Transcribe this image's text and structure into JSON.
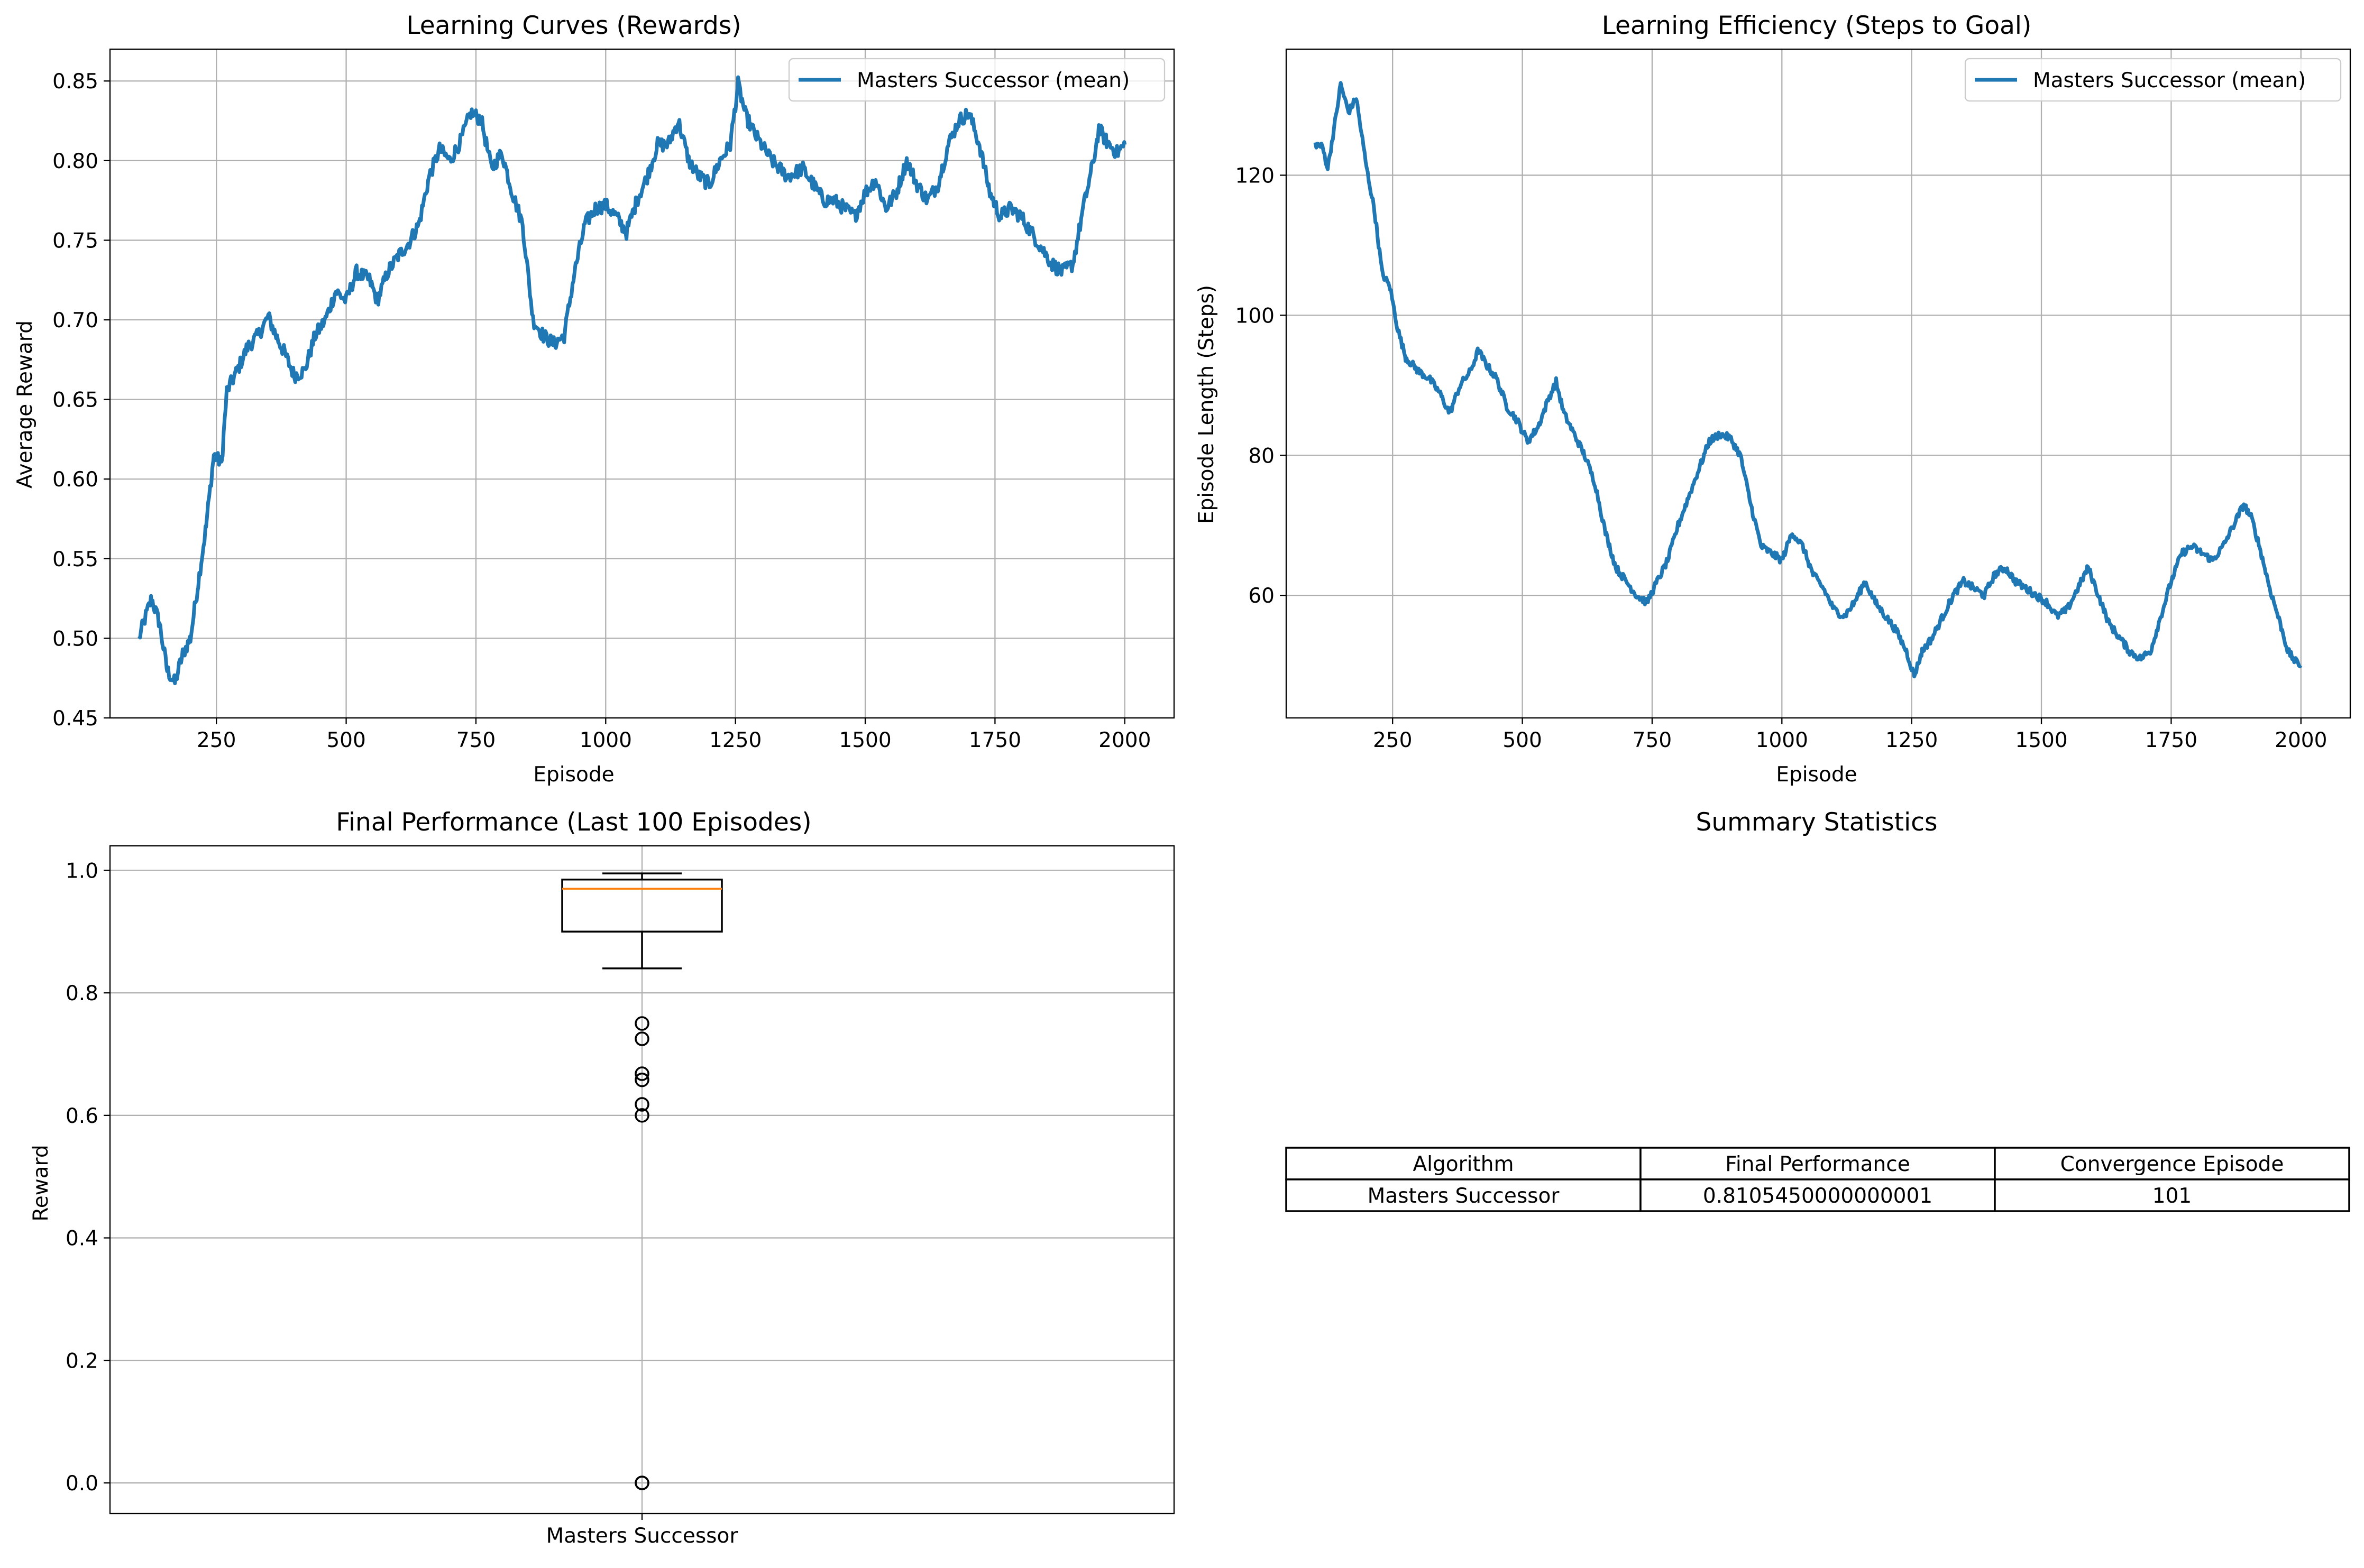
{
  "colors": {
    "series": "#1f77b4",
    "median": "#ff7f0e",
    "grid": "#b0b0b0"
  },
  "chart_data": [
    {
      "type": "line",
      "title": "Learning Curves (Rewards)",
      "xlabel": "Episode",
      "ylabel": "Average Reward",
      "xlim": [
        45,
        2095
      ],
      "ylim": [
        0.45,
        0.87
      ],
      "xticks": [
        250,
        500,
        750,
        1000,
        1250,
        1500,
        1750,
        2000
      ],
      "yticks": [
        0.45,
        0.5,
        0.55,
        0.6,
        0.65,
        0.7,
        0.75,
        0.8,
        0.85
      ],
      "grid": true,
      "legend": "top-right",
      "series": [
        {
          "name": "Masters Successor (mean)",
          "anchors": [
            [
              101,
              0.5
            ],
            [
              110,
              0.51
            ],
            [
              125,
              0.525
            ],
            [
              140,
              0.51
            ],
            [
              155,
              0.48
            ],
            [
              170,
              0.472
            ],
            [
              185,
              0.49
            ],
            [
              200,
              0.5
            ],
            [
              215,
              0.535
            ],
            [
              230,
              0.57
            ],
            [
              245,
              0.615
            ],
            [
              260,
              0.61
            ],
            [
              270,
              0.655
            ],
            [
              290,
              0.668
            ],
            [
              310,
              0.683
            ],
            [
              330,
              0.69
            ],
            [
              350,
              0.702
            ],
            [
              365,
              0.69
            ],
            [
              380,
              0.68
            ],
            [
              400,
              0.665
            ],
            [
              420,
              0.668
            ],
            [
              440,
              0.69
            ],
            [
              460,
              0.7
            ],
            [
              480,
              0.718
            ],
            [
              500,
              0.712
            ],
            [
              520,
              0.73
            ],
            [
              545,
              0.725
            ],
            [
              560,
              0.712
            ],
            [
              580,
              0.73
            ],
            [
              600,
              0.74
            ],
            [
              620,
              0.748
            ],
            [
              640,
              0.76
            ],
            [
              660,
              0.79
            ],
            [
              680,
              0.807
            ],
            [
              700,
              0.8
            ],
            [
              720,
              0.812
            ],
            [
              740,
              0.83
            ],
            [
              760,
              0.826
            ],
            [
              780,
              0.795
            ],
            [
              800,
              0.805
            ],
            [
              820,
              0.78
            ],
            [
              840,
              0.76
            ],
            [
              860,
              0.7
            ],
            [
              880,
              0.69
            ],
            [
              900,
              0.685
            ],
            [
              920,
              0.69
            ],
            [
              940,
              0.73
            ],
            [
              960,
              0.76
            ],
            [
              980,
              0.77
            ],
            [
              1000,
              0.772
            ],
            [
              1020,
              0.765
            ],
            [
              1040,
              0.755
            ],
            [
              1060,
              0.775
            ],
            [
              1080,
              0.79
            ],
            [
              1100,
              0.81
            ],
            [
              1120,
              0.81
            ],
            [
              1140,
              0.825
            ],
            [
              1160,
              0.8
            ],
            [
              1180,
              0.79
            ],
            [
              1200,
              0.785
            ],
            [
              1220,
              0.8
            ],
            [
              1240,
              0.81
            ],
            [
              1255,
              0.848
            ],
            [
              1270,
              0.828
            ],
            [
              1290,
              0.815
            ],
            [
              1320,
              0.8
            ],
            [
              1350,
              0.79
            ],
            [
              1380,
              0.795
            ],
            [
              1400,
              0.785
            ],
            [
              1420,
              0.775
            ],
            [
              1440,
              0.775
            ],
            [
              1460,
              0.77
            ],
            [
              1480,
              0.765
            ],
            [
              1500,
              0.78
            ],
            [
              1520,
              0.788
            ],
            [
              1540,
              0.77
            ],
            [
              1560,
              0.78
            ],
            [
              1580,
              0.8
            ],
            [
              1600,
              0.785
            ],
            [
              1620,
              0.775
            ],
            [
              1640,
              0.785
            ],
            [
              1660,
              0.81
            ],
            [
              1680,
              0.825
            ],
            [
              1700,
              0.83
            ],
            [
              1720,
              0.81
            ],
            [
              1740,
              0.78
            ],
            [
              1760,
              0.765
            ],
            [
              1780,
              0.77
            ],
            [
              1800,
              0.765
            ],
            [
              1820,
              0.755
            ],
            [
              1840,
              0.745
            ],
            [
              1860,
              0.735
            ],
            [
              1880,
              0.73
            ],
            [
              1900,
              0.735
            ],
            [
              1920,
              0.77
            ],
            [
              1940,
              0.8
            ],
            [
              1950,
              0.82
            ],
            [
              1965,
              0.812
            ],
            [
              1985,
              0.805
            ],
            [
              2000,
              0.81
            ]
          ]
        }
      ]
    },
    {
      "type": "line",
      "title": "Learning Efficiency (Steps to Goal)",
      "xlabel": "Episode",
      "ylabel": "Episode Length (Steps)",
      "xlim": [
        45,
        2095
      ],
      "ylim": [
        42.5,
        138
      ],
      "xticks": [
        250,
        500,
        750,
        1000,
        1250,
        1500,
        1750,
        2000
      ],
      "yticks": [
        60,
        80,
        100,
        120
      ],
      "grid": true,
      "legend": "top-right",
      "series": [
        {
          "name": "Masters Successor (mean)",
          "anchors": [
            [
              101,
              124.5
            ],
            [
              115,
              124
            ],
            [
              125,
              121
            ],
            [
              140,
              128
            ],
            [
              150,
              133
            ],
            [
              165,
              129
            ],
            [
              180,
              131
            ],
            [
              200,
              121
            ],
            [
              215,
              115
            ],
            [
              230,
              106
            ],
            [
              245,
              104
            ],
            [
              260,
              98
            ],
            [
              275,
              94
            ],
            [
              300,
              92
            ],
            [
              320,
              91
            ],
            [
              340,
              89
            ],
            [
              360,
              86
            ],
            [
              380,
              90
            ],
            [
              400,
              92
            ],
            [
              415,
              95
            ],
            [
              430,
              93
            ],
            [
              450,
              91
            ],
            [
              470,
              87
            ],
            [
              490,
              85
            ],
            [
              510,
              82
            ],
            [
              530,
              84
            ],
            [
              550,
              88
            ],
            [
              565,
              90.5
            ],
            [
              580,
              86
            ],
            [
              600,
              83
            ],
            [
              620,
              80
            ],
            [
              640,
              76
            ],
            [
              660,
              69
            ],
            [
              680,
              64
            ],
            [
              700,
              62
            ],
            [
              720,
              60
            ],
            [
              740,
              59
            ],
            [
              760,
              62
            ],
            [
              780,
              65
            ],
            [
              800,
              70
            ],
            [
              820,
              74
            ],
            [
              840,
              78
            ],
            [
              860,
              82
            ],
            [
              880,
              83
            ],
            [
              900,
              82.5
            ],
            [
              920,
              80
            ],
            [
              940,
              73
            ],
            [
              960,
              67
            ],
            [
              980,
              66
            ],
            [
              1000,
              65
            ],
            [
              1020,
              69
            ],
            [
              1040,
              67
            ],
            [
              1060,
              63
            ],
            [
              1080,
              61
            ],
            [
              1100,
              58
            ],
            [
              1120,
              57
            ],
            [
              1140,
              59
            ],
            [
              1160,
              62
            ],
            [
              1180,
              59
            ],
            [
              1200,
              57
            ],
            [
              1220,
              55
            ],
            [
              1240,
              52
            ],
            [
              1255,
              48.5
            ],
            [
              1270,
              52
            ],
            [
              1290,
              54
            ],
            [
              1310,
              57
            ],
            [
              1330,
              60
            ],
            [
              1350,
              62
            ],
            [
              1370,
              61
            ],
            [
              1390,
              60
            ],
            [
              1410,
              63
            ],
            [
              1430,
              64
            ],
            [
              1450,
              62
            ],
            [
              1470,
              61
            ],
            [
              1490,
              60
            ],
            [
              1510,
              59
            ],
            [
              1530,
              57
            ],
            [
              1550,
              58
            ],
            [
              1570,
              61
            ],
            [
              1590,
              64
            ],
            [
              1610,
              60
            ],
            [
              1630,
              56
            ],
            [
              1650,
              54
            ],
            [
              1670,
              52
            ],
            [
              1690,
              51
            ],
            [
              1710,
              52
            ],
            [
              1730,
              57
            ],
            [
              1750,
              62
            ],
            [
              1770,
              66
            ],
            [
              1790,
              67
            ],
            [
              1810,
              66
            ],
            [
              1830,
              65
            ],
            [
              1850,
              67
            ],
            [
              1870,
              70
            ],
            [
              1890,
              73
            ],
            [
              1905,
              71
            ],
            [
              1920,
              67
            ],
            [
              1940,
              61
            ],
            [
              1960,
              56
            ],
            [
              1975,
              52
            ],
            [
              1990,
              50.5
            ],
            [
              2000,
              50
            ]
          ]
        }
      ]
    },
    {
      "type": "box",
      "title": "Final Performance (Last 100 Episodes)",
      "ylabel": "Reward",
      "categories": [
        "Masters Successor"
      ],
      "ylim": [
        -0.05,
        1.04
      ],
      "yticks": [
        0.0,
        0.2,
        0.4,
        0.6,
        0.8,
        1.0
      ],
      "grid": true,
      "box": {
        "whisker_low": 0.84,
        "q1": 0.9,
        "median": 0.97,
        "q3": 0.985,
        "whisker_high": 0.995
      },
      "outliers": [
        0.75,
        0.725,
        0.668,
        0.658,
        0.618,
        0.6,
        0.0,
        0.0
      ]
    },
    {
      "type": "table",
      "title": "Summary Statistics",
      "columns": [
        "Algorithm",
        "Final Performance",
        "Convergence Episode"
      ],
      "rows": [
        [
          "Masters Successor",
          "0.8105450000000001",
          "101"
        ]
      ]
    }
  ]
}
